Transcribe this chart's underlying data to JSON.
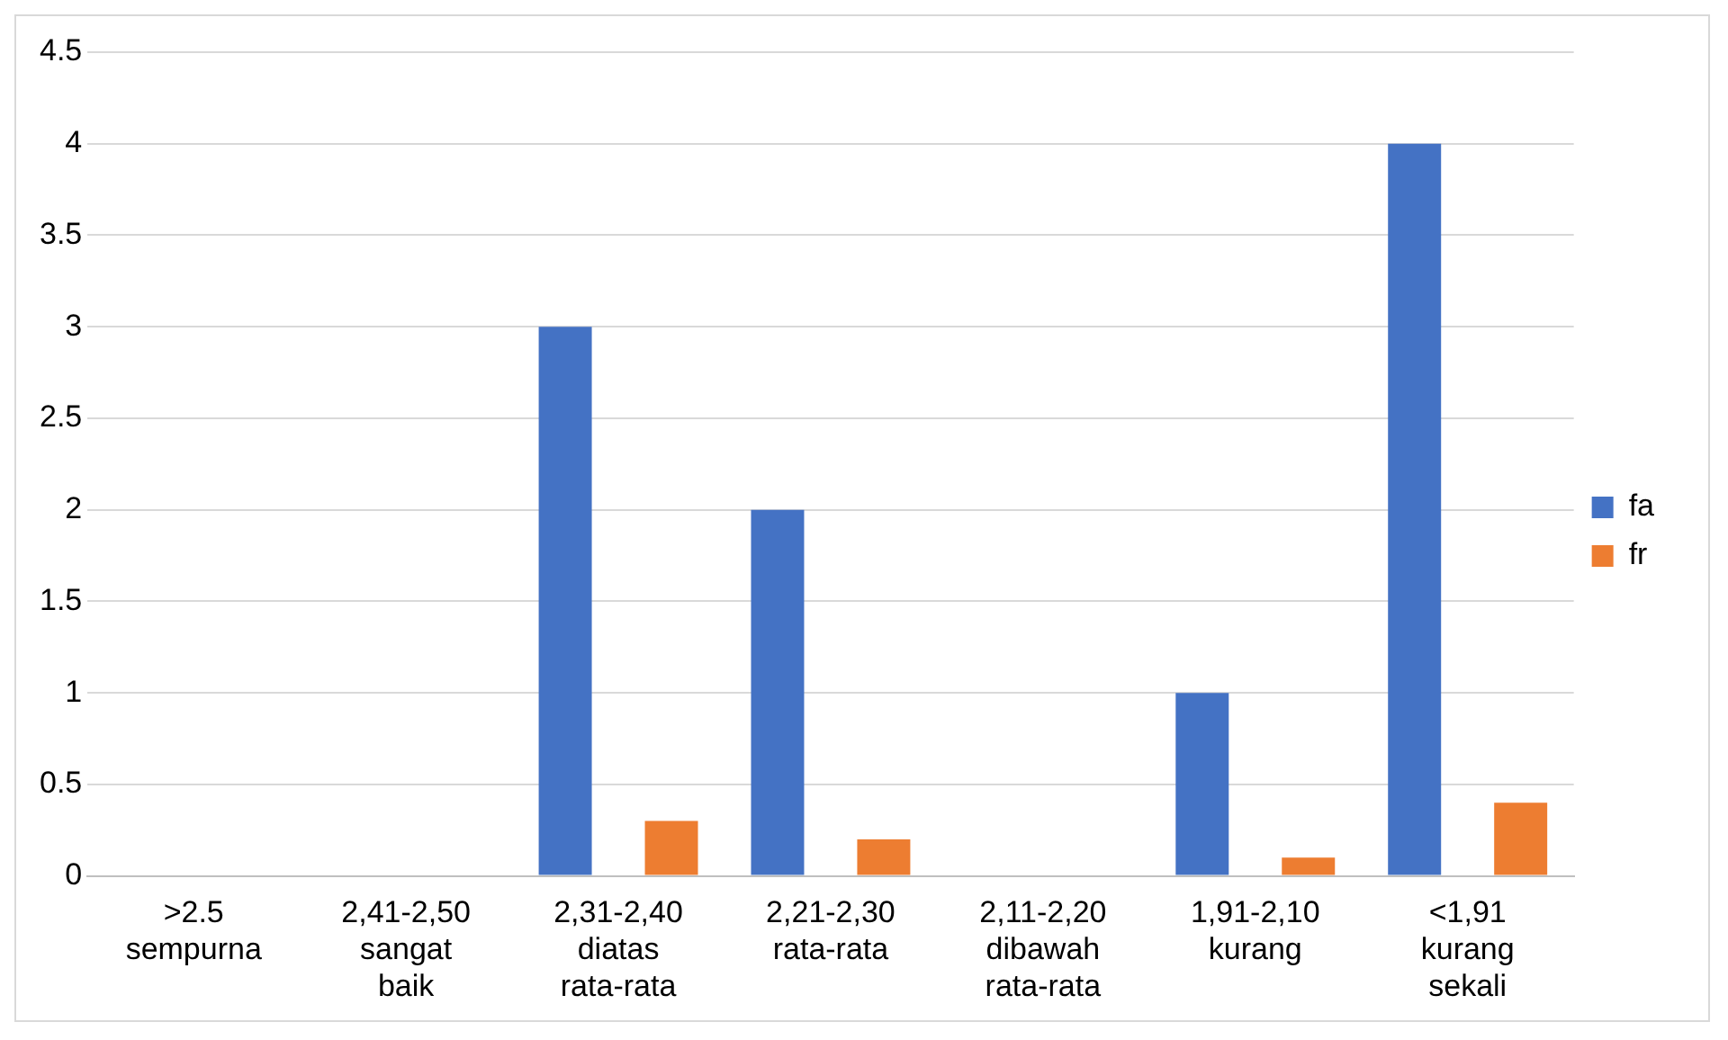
{
  "chart_data": {
    "type": "bar",
    "categories": [
      ">2.5 sempurna",
      "2,41-2,50 sangat baik",
      "2,31-2,40 diatas rata-rata",
      "2,21-2,30 rata-rata",
      "2,11-2,20 dibawah rata-rata",
      "1,91-2,10 kurang",
      "<1,91 kurang sekali"
    ],
    "series": [
      {
        "name": "fa",
        "color": "#4472c4",
        "values": [
          0,
          0,
          3,
          2,
          0,
          1,
          4
        ]
      },
      {
        "name": "fr",
        "color": "#ed7d31",
        "values": [
          0,
          0,
          0.3,
          0.2,
          0,
          0.1,
          0.4
        ]
      }
    ],
    "ylim": [
      0,
      4.5
    ],
    "yticks": [
      0,
      0.5,
      1,
      1.5,
      2,
      2.5,
      3,
      3.5,
      4,
      4.5
    ],
    "grid": "y",
    "legend": "right"
  }
}
